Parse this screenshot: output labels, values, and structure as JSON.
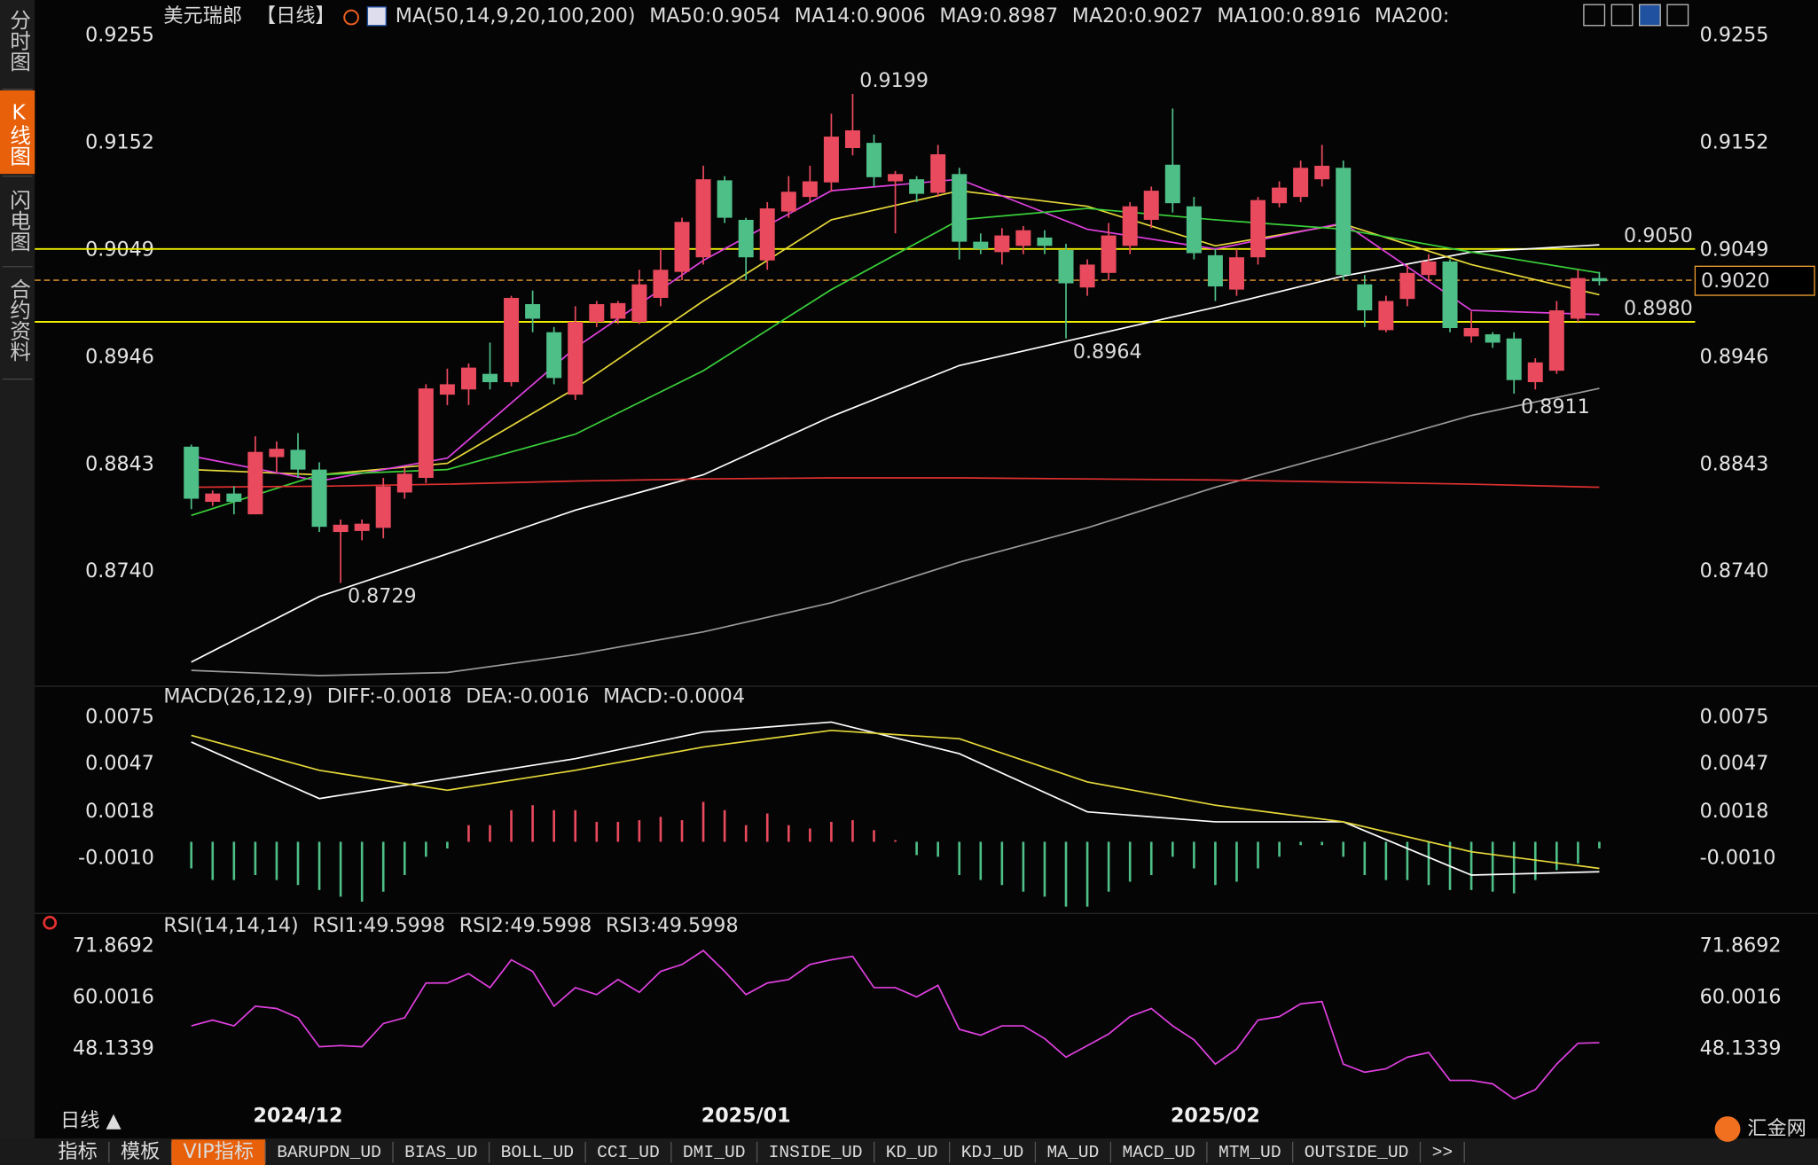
{
  "sidebar": [
    "分时图",
    "K线图",
    "闪电图",
    "合约资料"
  ],
  "header": {
    "symbol": "美元瑞郎",
    "period": "【日线】",
    "indicator": "MA(50,14,9,20,100,200)"
  },
  "chart_data": [
    {
      "type": "candlestick",
      "categories": [
        null,
        null,
        null,
        null,
        null,
        "2024/12",
        null,
        null,
        null,
        null,
        null,
        null,
        null,
        null,
        null,
        null,
        null,
        null,
        null,
        null,
        null,
        null,
        null,
        null,
        null,
        null,
        "2025/01",
        null,
        null,
        null,
        null,
        null,
        null,
        null,
        null,
        null,
        null,
        null,
        null,
        null,
        null,
        null,
        null,
        null,
        null,
        null,
        null,
        null,
        "2025/02",
        null,
        null,
        null,
        null,
        null,
        null,
        null,
        null,
        null,
        null,
        null,
        null,
        null,
        null,
        null,
        null,
        null,
        null
      ],
      "open": [
        0.886,
        0.8807,
        0.8815,
        0.8795,
        0.885,
        0.8857,
        0.8838,
        0.8778,
        0.8779,
        0.8782,
        0.8816,
        0.883,
        0.891,
        0.8915,
        0.893,
        0.8922,
        0.8997,
        0.897,
        0.891,
        0.898,
        0.8983,
        0.898,
        0.9003,
        0.9028,
        0.9042,
        0.9116,
        0.9078,
        0.9039,
        0.9086,
        0.91,
        0.9114,
        0.9147,
        0.9152,
        0.9115,
        0.9117,
        0.9104,
        0.9122,
        0.9057,
        0.9047,
        0.9053,
        0.9061,
        0.9049,
        0.9013,
        0.9027,
        0.9053,
        0.9078,
        0.9131,
        0.9091,
        0.9044,
        0.9011,
        0.9042,
        0.9094,
        0.91,
        0.9117,
        0.9128,
        0.9016,
        0.8972,
        0.9002,
        0.9025,
        0.9038,
        0.8966,
        0.8968,
        0.8964,
        0.8922,
        0.8933,
        0.8983,
        0.9022
      ],
      "high": [
        0.8862,
        0.8818,
        0.8822,
        0.887,
        0.8865,
        0.8873,
        0.8845,
        0.879,
        0.879,
        0.883,
        0.884,
        0.892,
        0.8935,
        0.894,
        0.896,
        0.9005,
        0.901,
        0.8975,
        0.8995,
        0.9,
        0.9,
        0.903,
        0.905,
        0.908,
        0.913,
        0.912,
        0.908,
        0.9095,
        0.912,
        0.913,
        0.918,
        0.9199,
        0.916,
        0.9125,
        0.912,
        0.915,
        0.9128,
        0.9065,
        0.907,
        0.9072,
        0.9068,
        0.9055,
        0.904,
        0.9075,
        0.9095,
        0.911,
        0.9185,
        0.91,
        0.905,
        0.905,
        0.91,
        0.9115,
        0.9135,
        0.915,
        0.9135,
        0.9025,
        0.9005,
        0.9035,
        0.9045,
        0.904,
        0.899,
        0.897,
        0.897,
        0.8945,
        0.9,
        0.903,
        0.9028
      ],
      "low": [
        0.88,
        0.8803,
        0.8795,
        0.8795,
        0.8835,
        0.883,
        0.8778,
        0.8729,
        0.877,
        0.8772,
        0.881,
        0.8825,
        0.89,
        0.89,
        0.8915,
        0.8918,
        0.897,
        0.892,
        0.8905,
        0.8975,
        0.8978,
        0.8978,
        0.8995,
        0.902,
        0.9035,
        0.9075,
        0.902,
        0.903,
        0.908,
        0.9095,
        0.9105,
        0.914,
        0.911,
        0.9065,
        0.9095,
        0.91,
        0.904,
        0.9045,
        0.9035,
        0.9045,
        0.9045,
        0.8964,
        0.9005,
        0.902,
        0.9045,
        0.907,
        0.9085,
        0.904,
        0.9,
        0.9005,
        0.9035,
        0.909,
        0.9095,
        0.911,
        0.902,
        0.8975,
        0.897,
        0.8995,
        0.902,
        0.897,
        0.896,
        0.8955,
        0.8911,
        0.8915,
        0.893,
        0.898,
        0.9015
      ],
      "close": [
        0.881,
        0.8815,
        0.8807,
        0.8855,
        0.8858,
        0.8838,
        0.8783,
        0.8785,
        0.8786,
        0.8822,
        0.8834,
        0.8916,
        0.892,
        0.8936,
        0.8922,
        0.9003,
        0.8983,
        0.8926,
        0.898,
        0.8997,
        0.8998,
        0.9016,
        0.903,
        0.9076,
        0.9117,
        0.908,
        0.9042,
        0.9089,
        0.9105,
        0.9115,
        0.9158,
        0.9164,
        0.9119,
        0.9122,
        0.9103,
        0.9141,
        0.9057,
        0.905,
        0.9063,
        0.9068,
        0.9053,
        0.9017,
        0.9035,
        0.9063,
        0.9091,
        0.9106,
        0.9094,
        0.9046,
        0.9014,
        0.9042,
        0.9097,
        0.9109,
        0.9128,
        0.913,
        0.9025,
        0.8991,
        0.9,
        0.9027,
        0.9038,
        0.8974,
        0.8974,
        0.896,
        0.8924,
        0.8941,
        0.8991,
        0.9022,
        0.9019
      ],
      "up_color": "#ea4a5e",
      "down_color": "#4fbf88",
      "ylim": [
        0.8632,
        0.9267
      ],
      "yticks": [
        {
          "value": 0.874,
          "label": "0.8740"
        },
        0.8843,
        0.8946,
        0.9049,
        0.9152,
        0.9255
      ],
      "series": [
        {
          "name": "MA50:0.9054",
          "color": "#ffffff",
          "x": [
            0,
            6,
            12,
            18,
            24,
            30,
            36,
            42,
            48,
            54,
            60,
            66
          ],
          "values": [
            0.8653,
            0.8716,
            0.8757,
            0.8799,
            0.8833,
            0.8889,
            0.8938,
            0.8966,
            0.8994,
            0.9024,
            0.9047,
            0.9054
          ]
        },
        {
          "name": "MA14:0.9006",
          "color": "#e6d83a",
          "x": [
            0,
            6,
            12,
            18,
            24,
            30,
            36,
            42,
            48,
            54,
            60,
            66
          ],
          "values": [
            0.8838,
            0.8833,
            0.8844,
            0.8916,
            0.9,
            0.9078,
            0.9106,
            0.9091,
            0.9053,
            0.9074,
            0.9035,
            0.9006
          ]
        },
        {
          "name": "MA9:0.8987",
          "color": "#e040e0",
          "x": [
            0,
            6,
            12,
            18,
            24,
            30,
            36,
            42,
            48,
            54,
            60,
            66
          ],
          "values": [
            0.8851,
            0.8827,
            0.8849,
            0.8955,
            0.9039,
            0.9106,
            0.9117,
            0.9069,
            0.905,
            0.9075,
            0.8991,
            0.8987
          ]
        },
        {
          "name": "MA20:0.9027",
          "color": "#3ad03a",
          "x": [
            0,
            6,
            12,
            18,
            24,
            30,
            36,
            42,
            48,
            54,
            60,
            66
          ],
          "values": [
            0.8794,
            0.8833,
            0.8838,
            0.8872,
            0.8933,
            0.9011,
            0.9078,
            0.9089,
            0.9078,
            0.9069,
            0.9047,
            0.9027
          ]
        },
        {
          "name": "MA100:0.8916",
          "color": "#9a9a9a",
          "x": [
            0,
            6,
            12,
            18,
            24,
            30,
            36,
            42,
            48,
            54,
            60,
            66
          ],
          "values": [
            0.8645,
            0.864,
            0.8643,
            0.866,
            0.8682,
            0.871,
            0.8749,
            0.8782,
            0.8821,
            0.8855,
            0.889,
            0.8916
          ]
        },
        {
          "name": "MA200:",
          "color": "#e03030",
          "x": [
            0,
            6,
            12,
            18,
            24,
            30,
            36,
            42,
            48,
            54,
            60,
            66
          ],
          "values": [
            0.8821,
            0.8822,
            0.8824,
            0.8827,
            0.8829,
            0.883,
            0.883,
            0.8829,
            0.8828,
            0.8826,
            0.8824,
            0.8821
          ]
        }
      ],
      "levels": [
        {
          "value": 0.905,
          "label": "0.9050",
          "color": "#f0f000"
        },
        {
          "value": 0.898,
          "label": "0.8980",
          "color": "#f0f000"
        }
      ],
      "last_price": {
        "value": 0.902,
        "label": "0.9020",
        "color": "#f0a030"
      },
      "annotations": [
        {
          "value": 0.9199,
          "label": "0.9199",
          "color": "#ea4a5e"
        },
        {
          "value": 0.8964,
          "label": "0.8964",
          "color": "#4fbf88"
        },
        {
          "value": 0.8729,
          "label": "0.8729",
          "color": "#4fbf88"
        },
        {
          "value": 0.8911,
          "label": "0.8911",
          "color": "#4fbf88"
        }
      ]
    },
    {
      "type": "macd",
      "title": "MACD(26,12,9)",
      "ylim": [
        -0.0041,
        0.0081
      ],
      "yticks": [
        {
          "value": -0.001,
          "label": "-0.0010"
        },
        0.0018,
        0.0047,
        0.0075
      ],
      "series": [
        {
          "name": "DIFF:-0.0018",
          "color": "#ffffff",
          "x": [
            0,
            6,
            12,
            18,
            24,
            30,
            36,
            42,
            48,
            54,
            60,
            66
          ],
          "values": [
            0.006,
            0.0026,
            0.0038,
            0.005,
            0.0066,
            0.0072,
            0.0053,
            0.0018,
            0.0012,
            0.0012,
            -0.002,
            -0.0018
          ]
        },
        {
          "name": "DEA:-0.0016",
          "color": "#e6d83a",
          "x": [
            0,
            6,
            12,
            18,
            24,
            30,
            36,
            42,
            48,
            54,
            60,
            66
          ],
          "values": [
            0.0064,
            0.0043,
            0.0031,
            0.0043,
            0.0057,
            0.0067,
            0.0062,
            0.0036,
            0.0022,
            0.0012,
            -0.0006,
            -0.0016
          ]
        },
        {
          "name": "MACD:-0.0004",
          "color": "#e040e0",
          "type": "bar",
          "up_color": "#ea4a5e",
          "down_color": "#4fbf88",
          "values": [
            -0.0016,
            -0.0023,
            -0.0023,
            -0.002,
            -0.0023,
            -0.0026,
            -0.0029,
            -0.0033,
            -0.0036,
            -0.003,
            -0.002,
            -0.0009,
            -0.0004,
            0.001,
            0.001,
            0.0019,
            0.0022,
            0.0019,
            0.0019,
            0.0012,
            0.0012,
            0.0013,
            0.0015,
            0.0013,
            0.0024,
            0.0019,
            0.001,
            0.0017,
            0.001,
            0.0008,
            0.0012,
            0.0013,
            0.0007,
            0.0001,
            -0.0008,
            -0.0009,
            -0.002,
            -0.0023,
            -0.0026,
            -0.003,
            -0.0033,
            -0.0039,
            -0.0039,
            -0.003,
            -0.0024,
            -0.002,
            -0.0009,
            -0.0016,
            -0.0026,
            -0.0024,
            -0.0016,
            -0.0009,
            -0.0002,
            -0.0002,
            -0.0009,
            -0.002,
            -0.0023,
            -0.0023,
            -0.0026,
            -0.0029,
            -0.0029,
            -0.003,
            -0.0031,
            -0.0023,
            -0.0017,
            -0.0013,
            -0.0004
          ]
        }
      ]
    },
    {
      "type": "line",
      "title": "RSI(14,14,14)",
      "ylim": [
        36.13,
        74.8
      ],
      "yticks": [
        48.1339,
        60.0016,
        71.8692
      ],
      "series": [
        {
          "name": "RSI1:49.5998",
          "color": "#ffffff"
        },
        {
          "name": "RSI2:49.5998",
          "color": "#e6d83a"
        },
        {
          "name": "RSI3:49.5998",
          "color": "#e040e0",
          "values": [
            53.47,
            54.8,
            53.47,
            58,
            57.47,
            55.34,
            48.67,
            48.93,
            48.67,
            54,
            55.34,
            63.33,
            63.33,
            65.47,
            62.27,
            68.67,
            66,
            58,
            62.27,
            60.67,
            64.13,
            61.2,
            66,
            67.6,
            70.8,
            66,
            60.67,
            63.33,
            64.13,
            67.6,
            68.67,
            69.47,
            62.27,
            62.27,
            60.13,
            62.8,
            52.67,
            51.33,
            53.47,
            53.47,
            50.54,
            46.27,
            48.93,
            51.6,
            55.6,
            57.47,
            53.47,
            50.27,
            44.67,
            48.13,
            54.8,
            55.6,
            58.54,
            59.07,
            44.67,
            42.8,
            43.6,
            46.27,
            47.34,
            40.93,
            40.93,
            40.13,
            36.67,
            38.8,
            44.67,
            49.47,
            49.6
          ]
        }
      ]
    }
  ],
  "footer": {
    "period": "日线 ▲",
    "tabs": [
      "指标",
      "模板",
      "VIP指标",
      "BARUPDN_UD",
      "BIAS_UD",
      "BOLL_UD",
      "CCI_UD",
      "DMI_UD",
      "INSIDE_UD",
      "KD_UD",
      "KDJ_UD",
      "MA_UD",
      "MACD_UD",
      "MTM_UD",
      "OUTSIDE_UD",
      ">>"
    ],
    "logo": "汇金网"
  }
}
